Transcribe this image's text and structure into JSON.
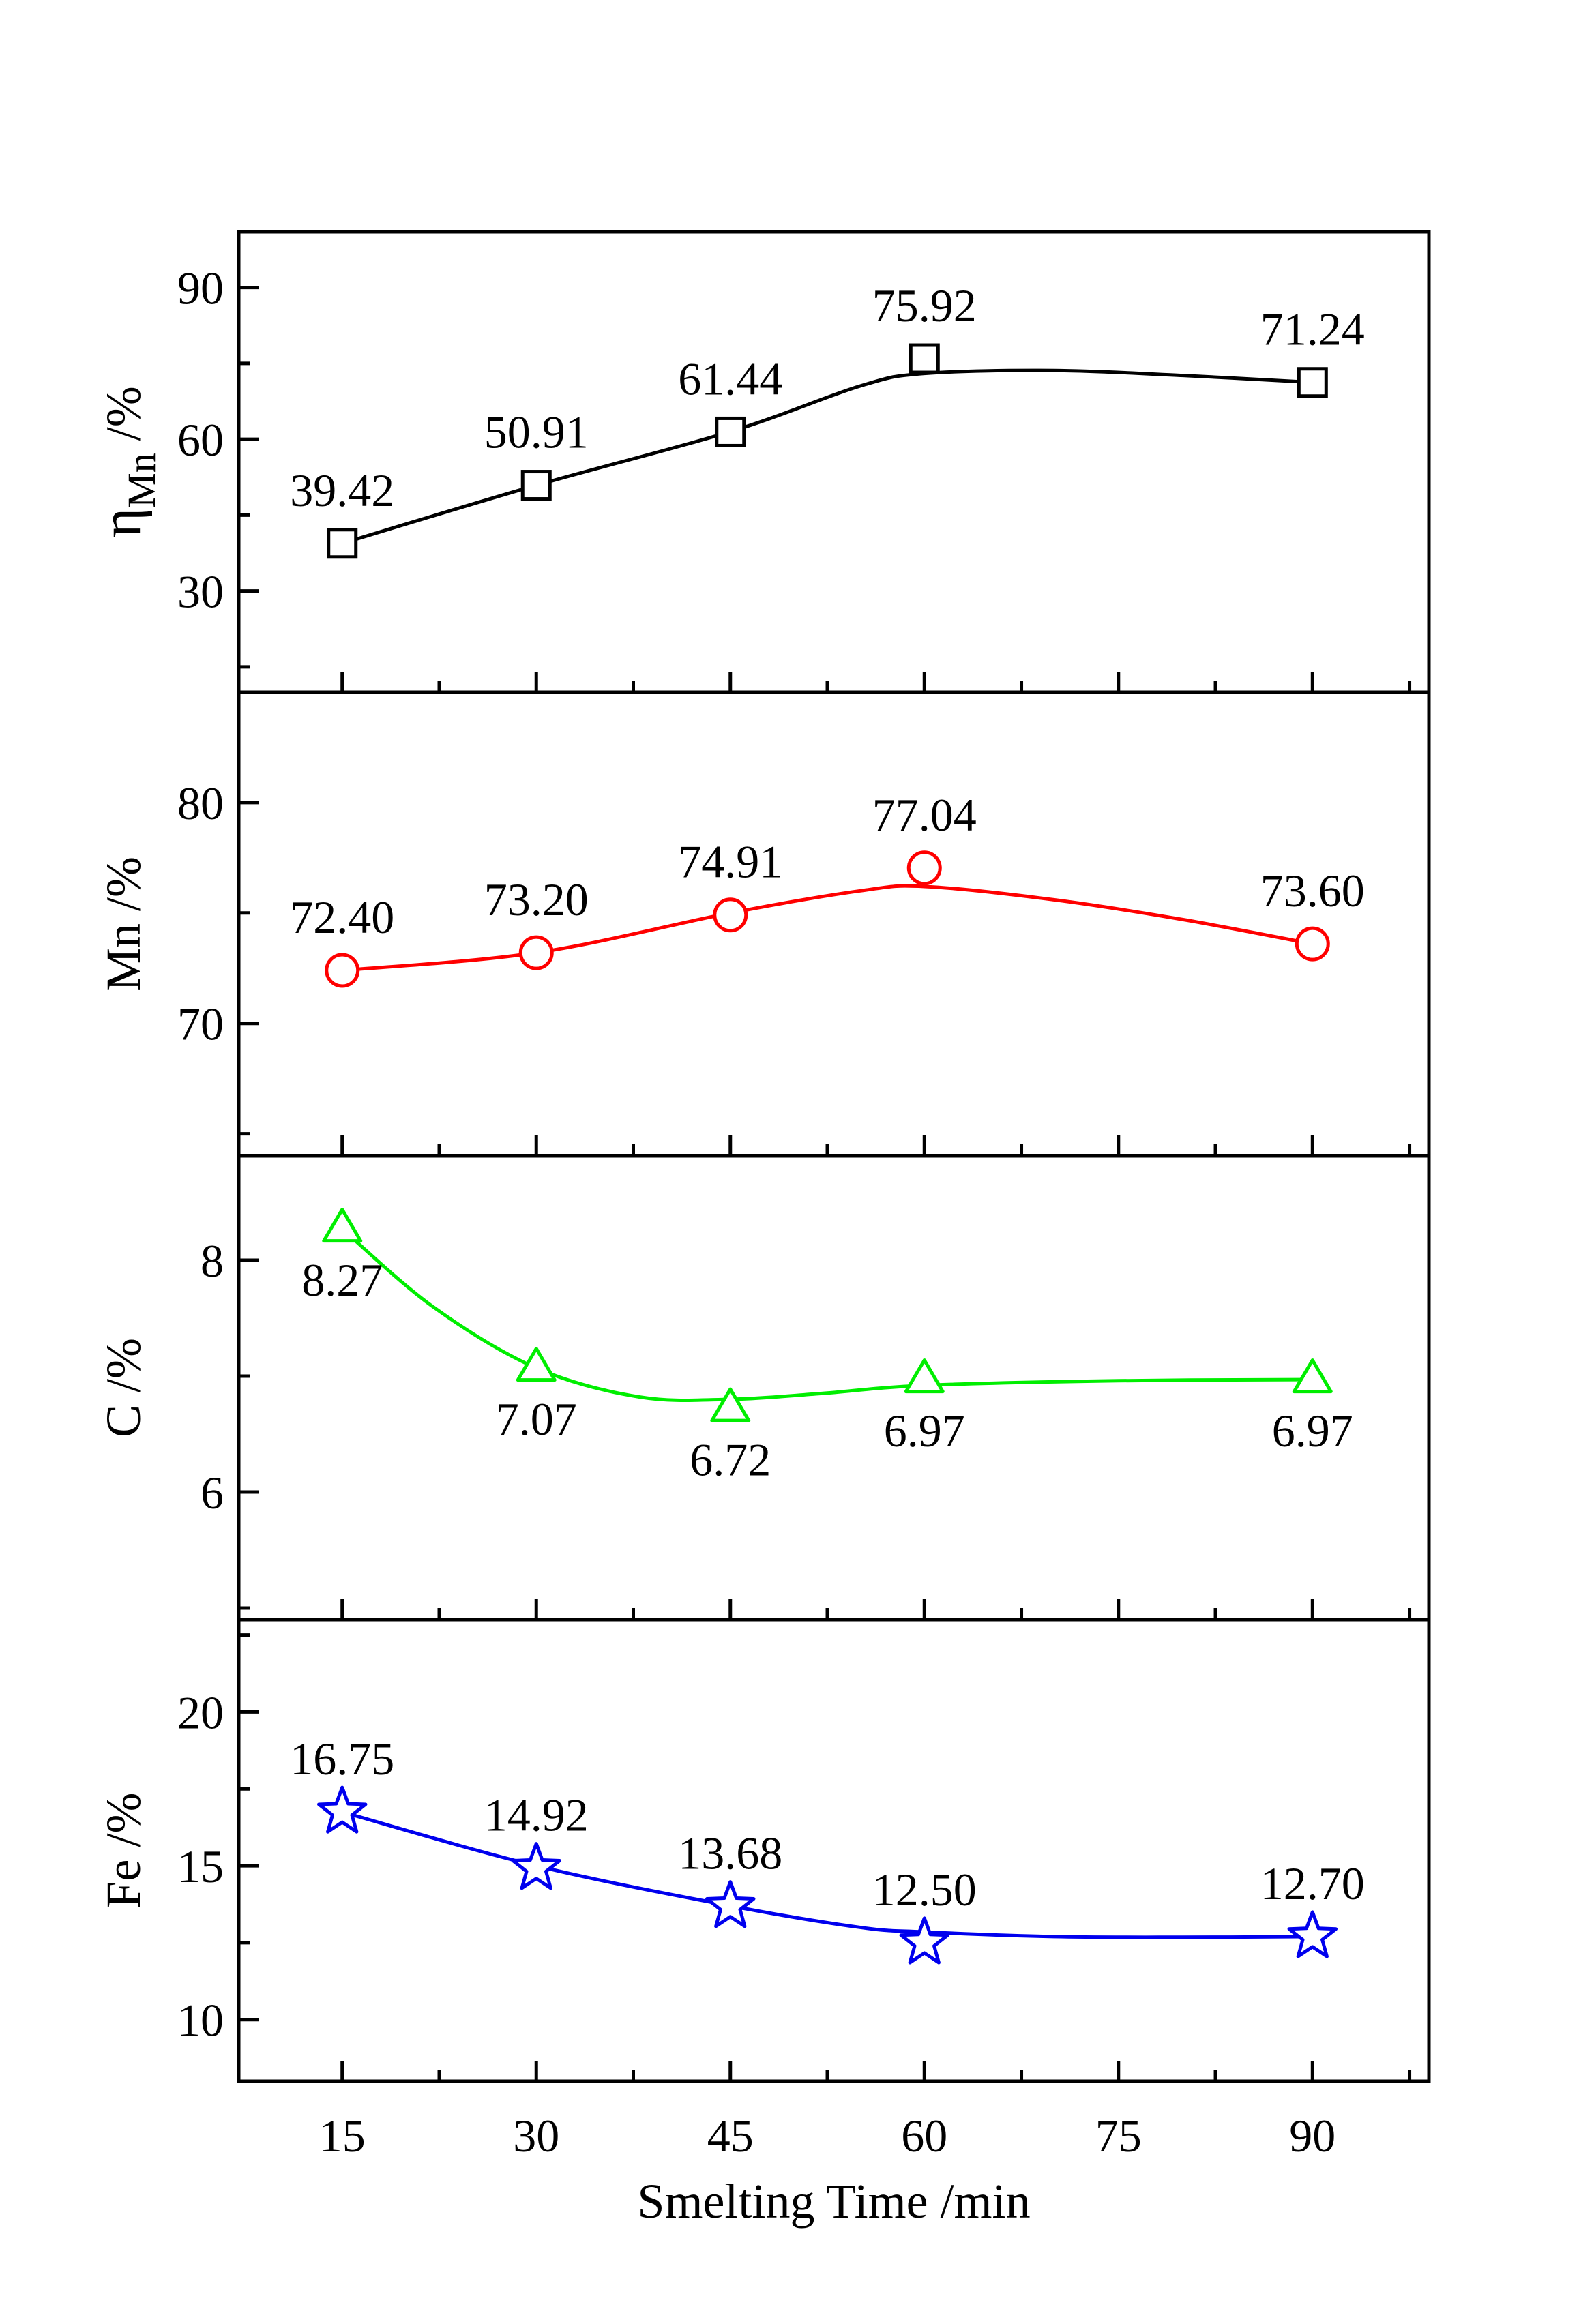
{
  "chart_data": {
    "type": "line",
    "xlabel": "Smelting Time /min",
    "x_ticks": [
      15,
      30,
      45,
      60,
      75,
      90
    ],
    "x": [
      15,
      30,
      45,
      60,
      90
    ],
    "xlim": [
      7,
      99
    ],
    "panels": [
      {
        "name": "eta-mn",
        "ylabel_main": "η",
        "ylabel_sub": "Mn",
        "ylabel_unit": " /%",
        "ylim": [
          10,
          101
        ],
        "y_ticks": [
          30,
          60,
          90
        ],
        "y_tick_labels": [
          "30",
          "60",
          "90"
        ],
        "values": [
          39.42,
          50.91,
          61.44,
          75.92,
          71.24
        ],
        "labels": [
          "39.42",
          "50.91",
          "61.44",
          "75.92",
          "71.24"
        ],
        "label_position": "above",
        "marker": "square",
        "color": "#000000",
        "fit": [
          [
            15,
            39.42
          ],
          [
            30,
            50.9
          ],
          [
            45,
            61.5
          ],
          [
            55,
            70.5
          ],
          [
            60,
            73.0
          ],
          [
            70,
            73.6
          ],
          [
            80,
            72.6
          ],
          [
            90,
            71.24
          ]
        ]
      },
      {
        "name": "mn",
        "ylabel_main": "Mn /%",
        "ylim": [
          64,
          85
        ],
        "y_ticks": [
          70,
          80
        ],
        "y_tick_labels": [
          "70",
          "80"
        ],
        "values": [
          72.4,
          73.2,
          74.91,
          77.04,
          73.6
        ],
        "labels": [
          "72.40",
          "73.20",
          "74.91",
          "77.04",
          "73.60"
        ],
        "label_position": "above",
        "marker": "circle",
        "color": "#ff0000",
        "fit": [
          [
            15,
            72.4
          ],
          [
            30,
            73.2
          ],
          [
            45,
            75.0
          ],
          [
            55,
            76.0
          ],
          [
            60,
            76.2
          ],
          [
            70,
            75.6
          ],
          [
            80,
            74.7
          ],
          [
            90,
            73.6
          ]
        ]
      },
      {
        "name": "c",
        "ylabel_main": "C /%",
        "ylim": [
          4.9,
          8.9
        ],
        "y_ticks": [
          6,
          8
        ],
        "y_tick_labels": [
          "6",
          "8"
        ],
        "values": [
          8.27,
          7.07,
          6.72,
          6.97,
          6.97
        ],
        "labels": [
          "8.27",
          "7.07",
          "6.72",
          "6.97",
          "6.97"
        ],
        "label_position": "below",
        "marker": "triangle",
        "color": "#00ee00",
        "fit": [
          [
            15,
            8.27
          ],
          [
            22,
            7.6
          ],
          [
            30,
            7.07
          ],
          [
            38,
            6.82
          ],
          [
            45,
            6.8
          ],
          [
            52,
            6.85
          ],
          [
            60,
            6.92
          ],
          [
            75,
            6.96
          ],
          [
            90,
            6.97
          ]
        ]
      },
      {
        "name": "fe",
        "ylabel_main": "Fe /%",
        "ylim": [
          8,
          23
        ],
        "y_ticks": [
          10,
          15,
          20
        ],
        "y_tick_labels": [
          "10",
          "15",
          "20"
        ],
        "values": [
          16.75,
          14.92,
          13.68,
          12.5,
          12.7
        ],
        "labels": [
          "16.75",
          "14.92",
          "13.68",
          "12.50",
          "12.70"
        ],
        "label_position": "above",
        "marker": "star",
        "color": "#0000ee",
        "fit": [
          [
            15,
            16.75
          ],
          [
            30,
            15.0
          ],
          [
            45,
            13.7
          ],
          [
            55,
            13.0
          ],
          [
            60,
            12.85
          ],
          [
            70,
            12.7
          ],
          [
            80,
            12.68
          ],
          [
            90,
            12.7
          ]
        ]
      }
    ]
  }
}
